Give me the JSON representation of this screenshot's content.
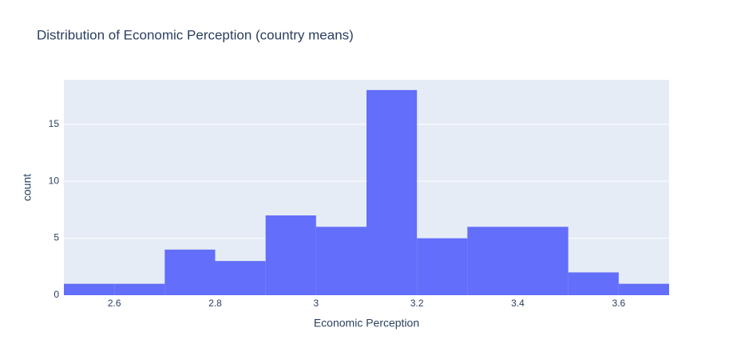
{
  "chart_data": {
    "type": "histogram",
    "title": "Distribution of Economic Perception (country means)",
    "x_label": "Economic Perception",
    "y_label": "count",
    "bins": [
      2.5,
      2.6,
      2.7,
      2.8,
      2.9,
      3.0,
      3.1,
      3.2,
      3.3,
      3.4,
      3.5,
      3.6,
      3.7
    ],
    "values": [
      1,
      1,
      4,
      3,
      7,
      6,
      18,
      5,
      6,
      6,
      2,
      1
    ],
    "color": "#636efa",
    "xlim": [
      2.5,
      3.7
    ],
    "xticks": [
      2.6,
      2.8,
      3,
      3.2,
      3.4,
      3.6
    ],
    "ylim": [
      0,
      18.9
    ],
    "yticks": [
      0,
      5,
      10,
      15
    ],
    "grid": true
  }
}
